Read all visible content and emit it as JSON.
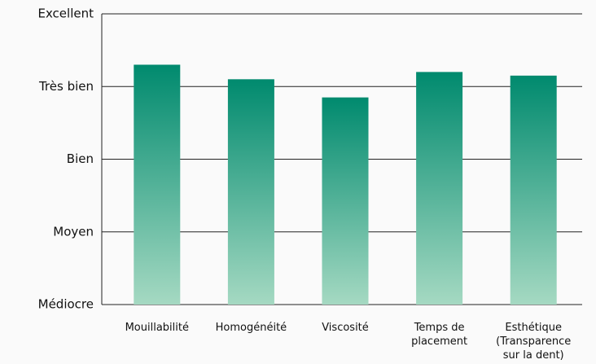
{
  "chart_data": {
    "type": "bar",
    "categories": [
      "Mouillabilité",
      "Homogénéité",
      "Viscosité",
      "Temps de\nplacement",
      "Esthétique\n(Transparence\nsur la dent)"
    ],
    "values": [
      3.3,
      3.1,
      2.85,
      3.2,
      3.15
    ],
    "color": [
      "#008a6e",
      "#a5d9c2"
    ],
    "ylim": [
      0,
      4
    ],
    "yticks": [
      {
        "value": 0,
        "label": "Médiocre"
      },
      {
        "value": 1,
        "label": "Moyen"
      },
      {
        "value": 2,
        "label": "Bien"
      },
      {
        "value": 3,
        "label": "Très bien"
      },
      {
        "value": 4,
        "label": "Excellent"
      }
    ],
    "grid": true
  }
}
